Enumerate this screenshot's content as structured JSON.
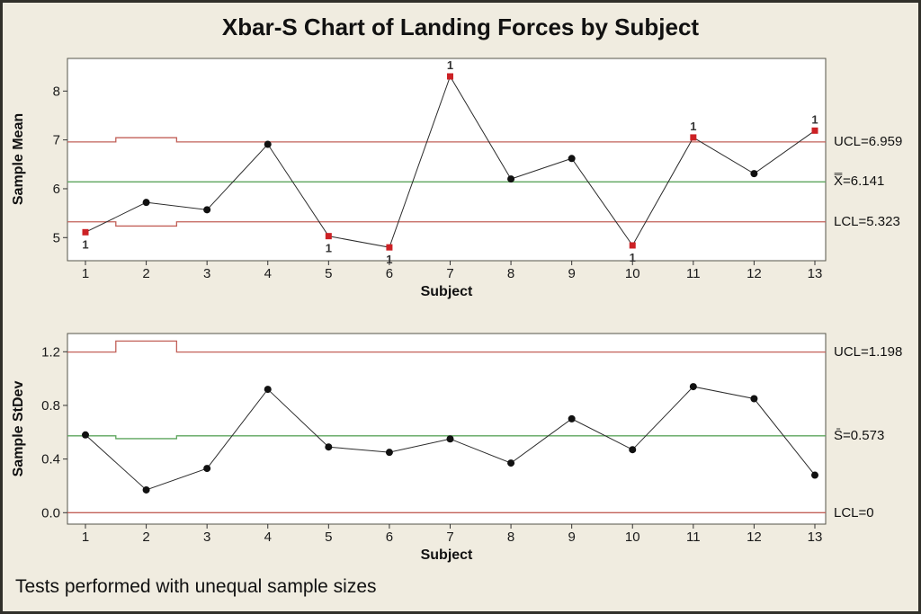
{
  "window": {
    "title": "Xbar-S Chart of Landing Forces by Subject",
    "footnote": "Tests performed with unequal sample sizes"
  },
  "colors": {
    "background": "#F0ECE0",
    "plot_background": "#FFFFFF",
    "control_limit": "#C26058",
    "center_line": "#5DA55D",
    "data_line": "#2B2B2B",
    "data_point": "#111111",
    "out_of_control_point": "#CC2125",
    "flag_text": "#333333"
  },
  "chart_data": [
    {
      "type": "line",
      "name": "xbar-chart",
      "title": "Xbar-S Chart of Landing Forces by Subject",
      "xlabel": "Subject",
      "ylabel": "Sample Mean",
      "categories": [
        "1",
        "2",
        "3",
        "4",
        "5",
        "6",
        "7",
        "8",
        "9",
        "10",
        "11",
        "12",
        "13"
      ],
      "values": [
        5.11,
        5.72,
        5.57,
        6.91,
        5.03,
        4.8,
        8.3,
        6.2,
        6.62,
        4.84,
        7.05,
        6.31,
        7.19
      ],
      "ylim": [
        4.52,
        8.66
      ],
      "ytick_values": [
        5,
        6,
        7,
        8
      ],
      "ytick_labels": [
        "5",
        "6",
        "7",
        "8"
      ],
      "ucl": 6.959,
      "center": 6.141,
      "lcl": 5.323,
      "limit_step": {
        "from": 1.5,
        "to": 2.5,
        "ucl": 7.045,
        "center": 6.141,
        "lcl": 5.237
      },
      "out_of_control": [
        1,
        5,
        6,
        7,
        10,
        11,
        13
      ],
      "flag_above": [
        7,
        11,
        13
      ],
      "flag_label": "1",
      "right_labels": {
        "ucl": "UCL=6.959",
        "center": "X̿=6.141",
        "lcl": "LCL=5.323"
      },
      "legend_position": "right",
      "grid": false
    },
    {
      "type": "line",
      "name": "s-chart",
      "title": "",
      "xlabel": "Subject",
      "ylabel": "Sample StDev",
      "categories": [
        "1",
        "2",
        "3",
        "4",
        "5",
        "6",
        "7",
        "8",
        "9",
        "10",
        "11",
        "12",
        "13"
      ],
      "values": [
        0.58,
        0.17,
        0.33,
        0.92,
        0.49,
        0.45,
        0.55,
        0.37,
        0.7,
        0.47,
        0.94,
        0.85,
        0.28
      ],
      "ylim": [
        -0.09,
        1.33
      ],
      "ytick_values": [
        0,
        0.4,
        0.8,
        1.2
      ],
      "ytick_labels": [
        "0.0",
        "0.4",
        "0.8",
        "1.2"
      ],
      "ucl": 1.198,
      "center": 0.573,
      "lcl": 0,
      "limit_step": {
        "from": 1.5,
        "to": 2.5,
        "ucl": 1.28,
        "center": 0.552,
        "lcl": 0
      },
      "out_of_control": [],
      "flag_above": [],
      "flag_label": "1",
      "right_labels": {
        "ucl": "UCL=1.198",
        "center": "S̄=0.573",
        "lcl": "LCL=0"
      },
      "legend_position": "right",
      "grid": false
    }
  ]
}
